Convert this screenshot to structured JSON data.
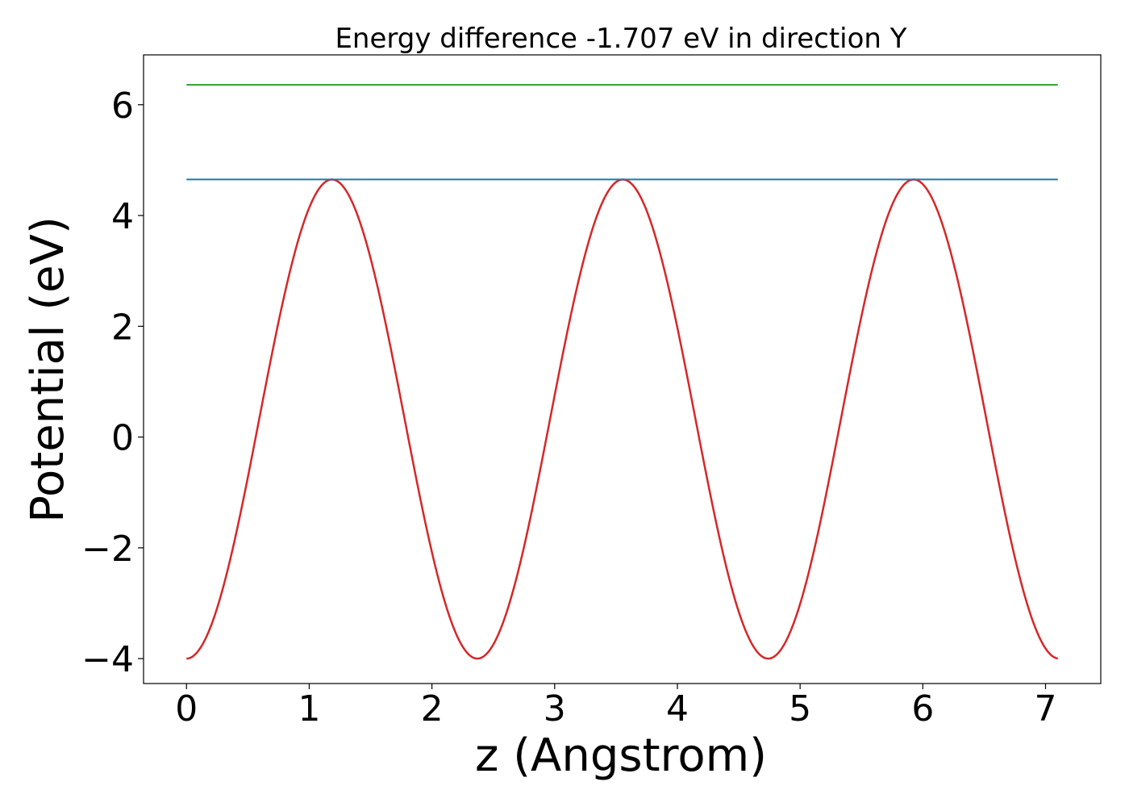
{
  "chart_data": {
    "type": "line",
    "title": "Energy difference -1.707 eV in direction Y",
    "xlabel": "z (Angstrom)",
    "ylabel": "Potential (eV)",
    "xlim": [
      -0.35,
      7.45
    ],
    "ylim": [
      -4.45,
      6.9
    ],
    "x_ticks": [
      0,
      1,
      2,
      3,
      4,
      5,
      6,
      7
    ],
    "x_tick_labels": [
      "0",
      "1",
      "2",
      "3",
      "4",
      "5",
      "6",
      "7"
    ],
    "y_ticks": [
      -4,
      -2,
      0,
      2,
      4,
      6
    ],
    "y_tick_labels": [
      "−4",
      "−2",
      "0",
      "2",
      "4",
      "6"
    ],
    "grid": false,
    "legend": "none",
    "series": [
      {
        "kind": "curve",
        "color": "#d62728",
        "x_range": [
          0,
          7.1
        ],
        "period": 2.37,
        "min": -4.0,
        "max": 4.65,
        "phase_at_x0": "minimum"
      },
      {
        "kind": "hline",
        "color": "#1f77b4",
        "x_range": [
          0,
          7.1
        ],
        "y": 4.65
      },
      {
        "kind": "hline",
        "color": "#2ca02c",
        "x_range": [
          0,
          7.1
        ],
        "y": 6.36
      }
    ]
  }
}
